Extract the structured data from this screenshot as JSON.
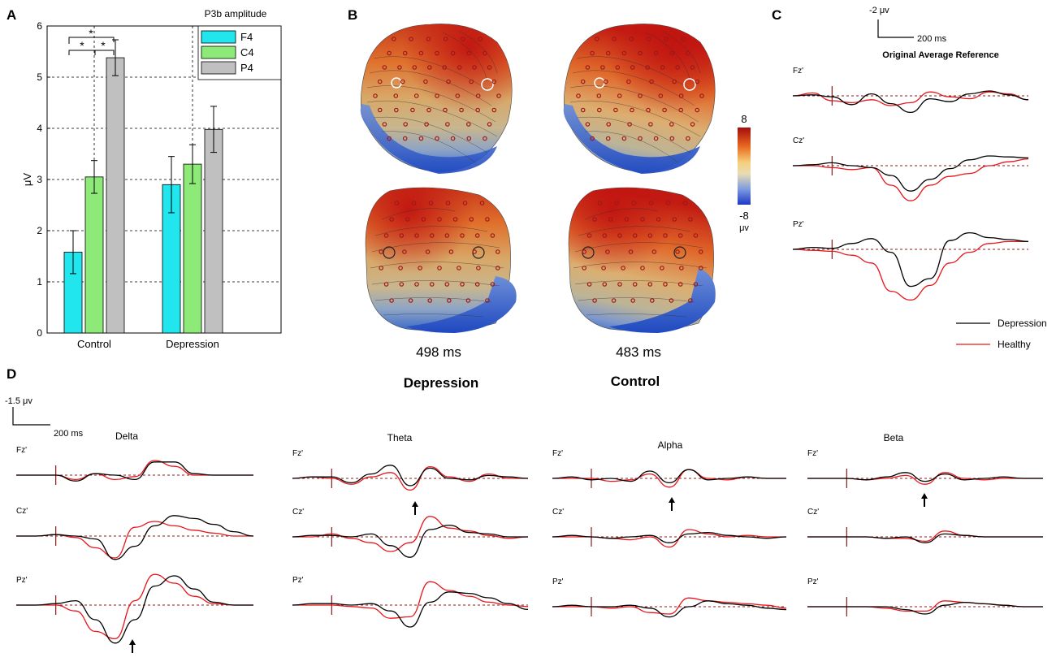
{
  "panels": {
    "A": "A",
    "B": "B",
    "C": "C",
    "D": "D"
  },
  "panel_a": {
    "title": "P3b amplitude",
    "ylabel": "μV",
    "significance_marks": [
      "*",
      "*",
      "*"
    ]
  },
  "panel_b": {
    "colorbar_max": "8",
    "colorbar_min": "-8",
    "colorbar_unit": "μv",
    "maps": [
      {
        "time": "498 ms",
        "group": "Depression"
      },
      {
        "time": "483 ms",
        "group": "Control"
      }
    ]
  },
  "panel_c": {
    "scale_amp": "-2 μv",
    "scale_time": "200 ms",
    "title": "Original Average Reference",
    "channels": [
      "Fz'",
      "Cz'",
      "Pz'"
    ],
    "legend": [
      {
        "label": "Depression",
        "color": "#000000"
      },
      {
        "label": "Healthy",
        "color": "#e8161b"
      }
    ]
  },
  "panel_d": {
    "scale_amp": "-1.5 μv",
    "scale_time": "200 ms",
    "bands": [
      "Delta",
      "Theta",
      "Alpha",
      "Beta"
    ],
    "channels": [
      "Fz'",
      "Cz'",
      "Pz'"
    ]
  },
  "colors": {
    "f4": "#22e6ee",
    "c4": "#8eea78",
    "p4": "#c0c0c0",
    "depression": "#000000",
    "healthy": "#e8161b",
    "electrode": "#a01818"
  },
  "chart_data": [
    {
      "type": "bar",
      "title": "P3b amplitude",
      "xlabel": "",
      "ylabel": "μV",
      "ylim": [
        0,
        6
      ],
      "yticks": [
        "0",
        "1",
        "2",
        "3",
        "4",
        "5",
        "6"
      ],
      "categories": [
        "Control",
        "Depression"
      ],
      "series": [
        {
          "name": "F4",
          "values": [
            1.58,
            2.9
          ],
          "errors": [
            0.42,
            0.55
          ]
        },
        {
          "name": "C4",
          "values": [
            3.05,
            3.3
          ],
          "errors": [
            0.32,
            0.38
          ]
        },
        {
          "name": "P4",
          "values": [
            5.38,
            3.98
          ],
          "errors": [
            0.35,
            0.45
          ]
        }
      ],
      "legend_position": "top-right"
    },
    {
      "type": "line",
      "title": "Original Average Reference",
      "x_unit": "ms",
      "y_unit": "μV",
      "x": [
        -200,
        -100,
        0,
        100,
        200,
        300,
        400,
        500,
        600,
        700,
        800,
        900,
        1000
      ],
      "rows": [
        {
          "channel": "Fz'",
          "Depression": [
            0,
            0.1,
            -0.1,
            -0.9,
            0.2,
            -0.8,
            -1.7,
            -0.3,
            -0.6,
            0.2,
            0.5,
            0.1,
            -0.4
          ],
          "Healthy": [
            0,
            0.3,
            -0.5,
            -0.7,
            -0.4,
            -1.0,
            -0.7,
            0.4,
            -0.1,
            -0.3,
            0.4,
            0.2,
            -0.4
          ]
        },
        {
          "channel": "Cz'",
          "Depression": [
            0,
            0.1,
            0.3,
            0.0,
            -0.2,
            -1.0,
            -2.6,
            -1.4,
            -0.3,
            0.6,
            1.0,
            0.9,
            0.8
          ],
          "Healthy": [
            0,
            0.0,
            -0.2,
            -0.4,
            -0.2,
            -2.0,
            -3.6,
            -2.0,
            -1.1,
            -0.8,
            0.0,
            0.4,
            0.7
          ]
        },
        {
          "channel": "Pz'",
          "Depression": [
            0,
            0.2,
            0.1,
            0.6,
            1.1,
            -0.3,
            -3.8,
            -3.0,
            0.9,
            1.7,
            1.2,
            1.0,
            0.8
          ],
          "Healthy": [
            0,
            -0.1,
            -0.2,
            -0.6,
            -1.4,
            -4.3,
            -5.2,
            -3.7,
            -1.4,
            -0.3,
            0.6,
            0.8,
            0.8
          ]
        }
      ]
    },
    {
      "type": "line",
      "title": "Delta",
      "x": [
        -200,
        -100,
        0,
        100,
        200,
        300,
        400,
        500,
        600,
        700,
        800,
        900,
        1000
      ],
      "rows": [
        {
          "channel": "Fz'",
          "Depression": [
            0,
            0,
            0,
            -0.4,
            0.1,
            0.0,
            -0.3,
            0.9,
            0.9,
            0.1,
            0,
            0,
            0
          ],
          "Healthy": [
            0,
            0,
            0,
            -0.3,
            0.1,
            -0.3,
            -0.1,
            1.0,
            0.6,
            0.0,
            0,
            0,
            0
          ]
        },
        {
          "channel": "Cz'",
          "Depression": [
            0,
            0,
            0.1,
            0.0,
            -0.2,
            -1.6,
            -0.7,
            0.7,
            1.4,
            1.2,
            0.8,
            0.3,
            0
          ],
          "Healthy": [
            0,
            0,
            0.1,
            -0.1,
            -0.8,
            -1.5,
            0.6,
            1.0,
            0.7,
            0.4,
            0.2,
            0,
            0
          ]
        },
        {
          "channel": "Pz'",
          "Depression": [
            0,
            0,
            0.1,
            0.3,
            -1.0,
            -2.6,
            -1.0,
            1.3,
            2.0,
            1.1,
            0.2,
            0,
            0
          ],
          "Healthy": [
            0,
            0,
            0,
            -0.4,
            -1.8,
            -2.3,
            0.3,
            2.1,
            1.5,
            0.6,
            0.1,
            0,
            0
          ]
        }
      ]
    },
    {
      "type": "line",
      "title": "Theta",
      "x": [
        -200,
        -100,
        0,
        100,
        200,
        300,
        400,
        500,
        600,
        700,
        800,
        900,
        1000
      ],
      "rows": [
        {
          "channel": "Fz'",
          "Depression": [
            0,
            0.1,
            0.1,
            -0.3,
            0.3,
            0.9,
            -0.5,
            0.7,
            0.0,
            -0.1,
            0.2,
            0.1,
            0
          ],
          "Healthy": [
            0,
            0.1,
            0.0,
            -0.4,
            0.1,
            0.4,
            -0.8,
            0.8,
            0.1,
            -0.2,
            0.3,
            0.0,
            0
          ]
        },
        {
          "channel": "Cz'",
          "Depression": [
            0,
            0.1,
            0.1,
            0.0,
            0.2,
            -0.6,
            -1.4,
            0.5,
            0.8,
            0.3,
            0.2,
            0.0,
            0
          ],
          "Healthy": [
            0,
            0.0,
            0.2,
            -0.1,
            -0.4,
            -1.0,
            -0.4,
            1.4,
            0.6,
            0.4,
            0.1,
            -0.1,
            0
          ]
        },
        {
          "channel": "Pz'",
          "Depression": [
            0,
            0.1,
            0.1,
            0.0,
            0.1,
            -0.4,
            -1.5,
            0.2,
            0.9,
            0.8,
            0.5,
            0.1,
            -0.3
          ],
          "Healthy": [
            0,
            0.0,
            0.0,
            -0.1,
            -0.2,
            -0.9,
            -0.8,
            1.6,
            1.0,
            0.6,
            0.2,
            0.0,
            -0.1
          ]
        }
      ]
    },
    {
      "type": "line",
      "title": "Alpha",
      "x": [
        -200,
        -100,
        0,
        100,
        200,
        300,
        400,
        500,
        600,
        700,
        800,
        900,
        1000
      ],
      "rows": [
        {
          "channel": "Fz'",
          "Depression": [
            0,
            0.1,
            -0.1,
            0.0,
            -0.2,
            0.5,
            -0.3,
            0.6,
            -0.1,
            0.0,
            0.1,
            0.0,
            0
          ],
          "Healthy": [
            0,
            0.0,
            0.0,
            -0.2,
            -0.1,
            0.3,
            -0.6,
            0.6,
            0.0,
            -0.1,
            0.1,
            0.0,
            0
          ]
        },
        {
          "channel": "Cz'",
          "Depression": [
            0,
            0.1,
            0.0,
            -0.1,
            0.0,
            0.1,
            -0.4,
            0.2,
            0.3,
            0.1,
            0.0,
            -0.1,
            0
          ],
          "Healthy": [
            0,
            0.0,
            0.0,
            -0.1,
            -0.2,
            0.0,
            -0.7,
            0.5,
            0.2,
            0.0,
            0.1,
            0.0,
            0
          ]
        },
        {
          "channel": "Pz'",
          "Depression": [
            0,
            0.1,
            0.0,
            0.0,
            0.1,
            -0.1,
            -0.7,
            0.0,
            0.4,
            0.2,
            0.1,
            -0.1,
            -0.2
          ],
          "Healthy": [
            0,
            0.0,
            0.0,
            -0.1,
            0.0,
            -0.4,
            -0.5,
            0.6,
            0.4,
            0.3,
            0.2,
            0.1,
            -0.1
          ]
        }
      ]
    },
    {
      "type": "line",
      "title": "Beta",
      "x": [
        -200,
        -100,
        0,
        100,
        200,
        300,
        400,
        500,
        600,
        700,
        800,
        900,
        1000
      ],
      "rows": [
        {
          "channel": "Fz'",
          "Depression": [
            0,
            0.0,
            0.0,
            -0.1,
            0.1,
            0.4,
            -0.2,
            0.3,
            -0.1,
            0.0,
            0.1,
            0.0,
            0
          ],
          "Healthy": [
            0,
            0.0,
            0.0,
            -0.1,
            0.0,
            0.2,
            -0.4,
            0.4,
            0.0,
            -0.1,
            0.0,
            0.0,
            0
          ]
        },
        {
          "channel": "Cz'",
          "Depression": [
            0,
            0.0,
            0.0,
            0.0,
            -0.1,
            0.0,
            -0.4,
            0.2,
            0.1,
            0.0,
            0.0,
            0.0,
            0
          ],
          "Healthy": [
            0,
            0.0,
            0.0,
            0.0,
            -0.1,
            -0.1,
            -0.3,
            0.4,
            0.1,
            0.0,
            0.0,
            0.0,
            0
          ]
        },
        {
          "channel": "Pz'",
          "Depression": [
            0,
            0.0,
            0.0,
            0.0,
            0.0,
            -0.2,
            -0.5,
            0.1,
            0.3,
            0.2,
            0.1,
            0.0,
            0
          ],
          "Healthy": [
            0,
            0.0,
            0.0,
            0.0,
            -0.1,
            -0.3,
            -0.3,
            0.4,
            0.3,
            0.2,
            0.1,
            0.0,
            0
          ]
        }
      ]
    }
  ]
}
